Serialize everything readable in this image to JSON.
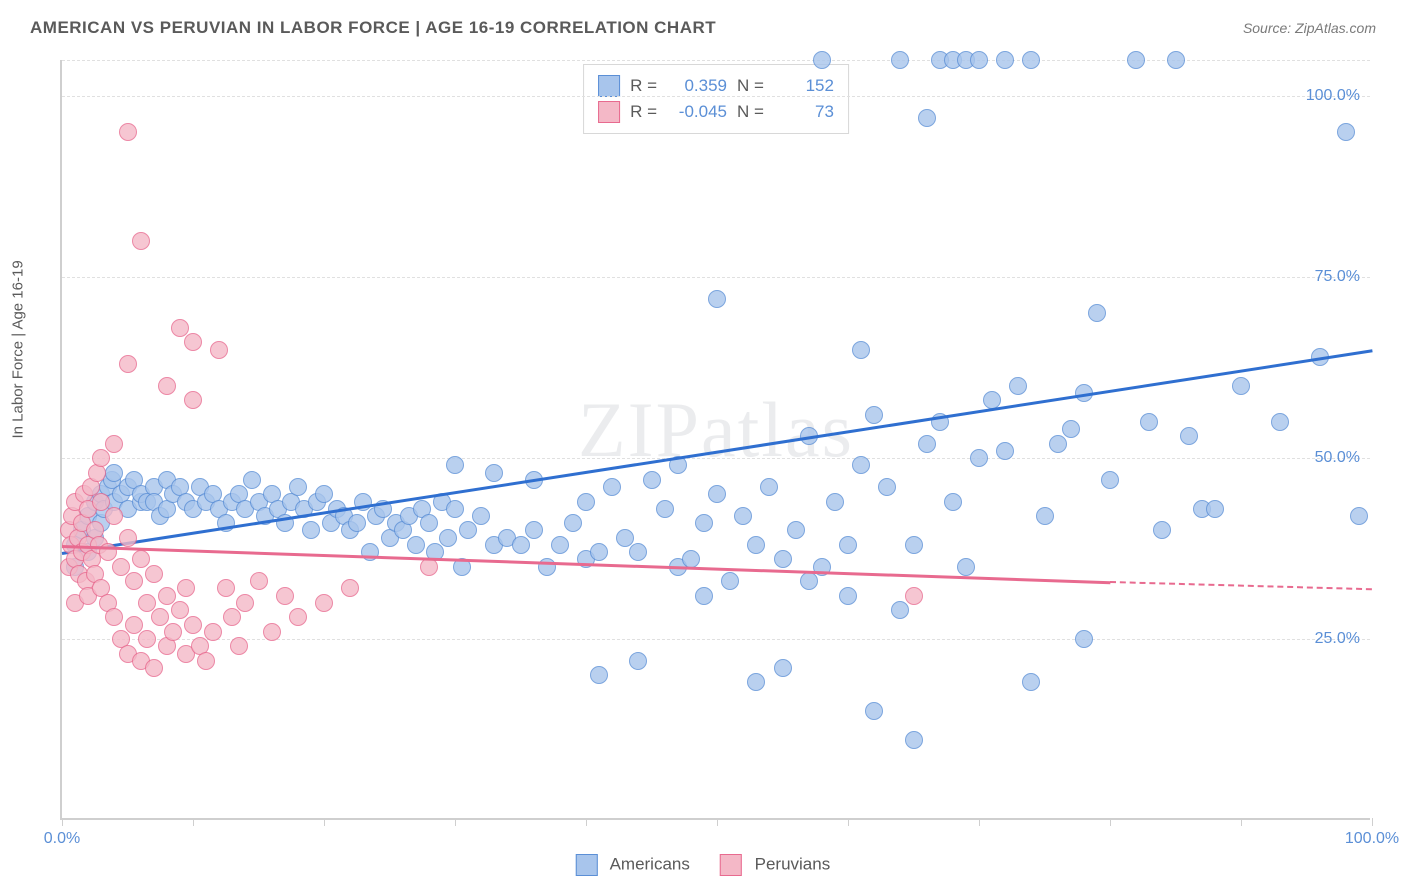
{
  "title": "AMERICAN VS PERUVIAN IN LABOR FORCE | AGE 16-19 CORRELATION CHART",
  "source": "Source: ZipAtlas.com",
  "watermark": "ZIPatlas",
  "y_axis_label": "In Labor Force | Age 16-19",
  "chart": {
    "type": "scatter",
    "xlim": [
      0,
      100
    ],
    "ylim": [
      0,
      105
    ],
    "x_ticks_minor": [
      0,
      10,
      20,
      30,
      40,
      50,
      60,
      70,
      80,
      90,
      100
    ],
    "x_tick_labels": [
      {
        "pos": 0,
        "label": "0.0%"
      },
      {
        "pos": 100,
        "label": "100.0%"
      }
    ],
    "y_grid": [
      25,
      50,
      75,
      100,
      105
    ],
    "y_tick_labels": [
      {
        "pos": 25,
        "label": "25.0%"
      },
      {
        "pos": 50,
        "label": "50.0%"
      },
      {
        "pos": 75,
        "label": "75.0%"
      },
      {
        "pos": 100,
        "label": "100.0%"
      }
    ],
    "background_color": "#ffffff",
    "grid_color": "#e0e0e0",
    "axis_color": "#cfcfcf",
    "tick_label_color": "#5b8fd6",
    "text_color": "#5a5a5a",
    "marker_radius": 9,
    "marker_stroke_width": 1.5,
    "marker_fill_opacity": 0.35,
    "series": [
      {
        "name": "Americans",
        "fill_color": "#a8c5ec",
        "stroke_color": "#5b8fd6",
        "line_color": "#2f6fd0",
        "trend": {
          "x1": 0,
          "y1": 37,
          "x2": 100,
          "y2": 65,
          "dash_from_x": 100
        },
        "R": "0.359",
        "N": "152",
        "points": [
          [
            1,
            35
          ],
          [
            1,
            38
          ],
          [
            1.5,
            40
          ],
          [
            2,
            37
          ],
          [
            2,
            42
          ],
          [
            2.5,
            39
          ],
          [
            2.5,
            44
          ],
          [
            3,
            41
          ],
          [
            3,
            45
          ],
          [
            3.2,
            43
          ],
          [
            3.5,
            46
          ],
          [
            3.8,
            47
          ],
          [
            4,
            44
          ],
          [
            4,
            48
          ],
          [
            4.5,
            45
          ],
          [
            5,
            43
          ],
          [
            5,
            46
          ],
          [
            5.5,
            47
          ],
          [
            6,
            44
          ],
          [
            6,
            45
          ],
          [
            6.5,
            44
          ],
          [
            7,
            46
          ],
          [
            7,
            44
          ],
          [
            7.5,
            42
          ],
          [
            8,
            47
          ],
          [
            8,
            43
          ],
          [
            8.5,
            45
          ],
          [
            9,
            46
          ],
          [
            9.5,
            44
          ],
          [
            10,
            43
          ],
          [
            10.5,
            46
          ],
          [
            11,
            44
          ],
          [
            11.5,
            45
          ],
          [
            12,
            43
          ],
          [
            12.5,
            41
          ],
          [
            13,
            44
          ],
          [
            13.5,
            45
          ],
          [
            14,
            43
          ],
          [
            14.5,
            47
          ],
          [
            15,
            44
          ],
          [
            15.5,
            42
          ],
          [
            16,
            45
          ],
          [
            16.5,
            43
          ],
          [
            17,
            41
          ],
          [
            17.5,
            44
          ],
          [
            18,
            46
          ],
          [
            18.5,
            43
          ],
          [
            19,
            40
          ],
          [
            19.5,
            44
          ],
          [
            20,
            45
          ],
          [
            20.5,
            41
          ],
          [
            21,
            43
          ],
          [
            21.5,
            42
          ],
          [
            22,
            40
          ],
          [
            22.5,
            41
          ],
          [
            23,
            44
          ],
          [
            23.5,
            37
          ],
          [
            24,
            42
          ],
          [
            24.5,
            43
          ],
          [
            25,
            39
          ],
          [
            25.5,
            41
          ],
          [
            26,
            40
          ],
          [
            26.5,
            42
          ],
          [
            27,
            38
          ],
          [
            27.5,
            43
          ],
          [
            28,
            41
          ],
          [
            28.5,
            37
          ],
          [
            29,
            44
          ],
          [
            29.5,
            39
          ],
          [
            30,
            43
          ],
          [
            30,
            49
          ],
          [
            30.5,
            35
          ],
          [
            31,
            40
          ],
          [
            32,
            42
          ],
          [
            33,
            38
          ],
          [
            33,
            48
          ],
          [
            34,
            39
          ],
          [
            35,
            38
          ],
          [
            36,
            40
          ],
          [
            36,
            47
          ],
          [
            37,
            35
          ],
          [
            38,
            38
          ],
          [
            39,
            41
          ],
          [
            40,
            36
          ],
          [
            40,
            44
          ],
          [
            41,
            20
          ],
          [
            41,
            37
          ],
          [
            42,
            46
          ],
          [
            43,
            39
          ],
          [
            44,
            37
          ],
          [
            44,
            22
          ],
          [
            45,
            47
          ],
          [
            46,
            43
          ],
          [
            47,
            49
          ],
          [
            47,
            35
          ],
          [
            48,
            36
          ],
          [
            49,
            31
          ],
          [
            49,
            41
          ],
          [
            50,
            45
          ],
          [
            50,
            72
          ],
          [
            51,
            33
          ],
          [
            52,
            42
          ],
          [
            53,
            19
          ],
          [
            53,
            38
          ],
          [
            54,
            46
          ],
          [
            55,
            36
          ],
          [
            55,
            21
          ],
          [
            56,
            40
          ],
          [
            57,
            33
          ],
          [
            57,
            53
          ],
          [
            58,
            35
          ],
          [
            58,
            105
          ],
          [
            59,
            44
          ],
          [
            60,
            38
          ],
          [
            60,
            31
          ],
          [
            61,
            49
          ],
          [
            61,
            65
          ],
          [
            62,
            15
          ],
          [
            62,
            56
          ],
          [
            63,
            46
          ],
          [
            64,
            29
          ],
          [
            64,
            105
          ],
          [
            65,
            38
          ],
          [
            65,
            11
          ],
          [
            66,
            52
          ],
          [
            66,
            97
          ],
          [
            67,
            55
          ],
          [
            67,
            105
          ],
          [
            68,
            44
          ],
          [
            68,
            105
          ],
          [
            69,
            35
          ],
          [
            69,
            105
          ],
          [
            70,
            50
          ],
          [
            70,
            105
          ],
          [
            71,
            58
          ],
          [
            72,
            51
          ],
          [
            72,
            105
          ],
          [
            73,
            60
          ],
          [
            74,
            19
          ],
          [
            74,
            105
          ],
          [
            75,
            42
          ],
          [
            76,
            52
          ],
          [
            77,
            54
          ],
          [
            78,
            25
          ],
          [
            78,
            59
          ],
          [
            79,
            70
          ],
          [
            80,
            47
          ],
          [
            82,
            105
          ],
          [
            83,
            55
          ],
          [
            84,
            40
          ],
          [
            85,
            105
          ],
          [
            86,
            53
          ],
          [
            87,
            43
          ],
          [
            88,
            43
          ],
          [
            90,
            60
          ],
          [
            93,
            55
          ],
          [
            96,
            64
          ],
          [
            98,
            95
          ],
          [
            99,
            42
          ]
        ]
      },
      {
        "name": "Peruvians",
        "fill_color": "#f4b8c7",
        "stroke_color": "#e86a8f",
        "line_color": "#e86a8f",
        "trend": {
          "x1": 0,
          "y1": 38,
          "x2": 80,
          "y2": 33,
          "dash_from_x": 80,
          "dash_x2": 100,
          "dash_y2": 32
        },
        "R": "-0.045",
        "N": "73",
        "points": [
          [
            0.5,
            40
          ],
          [
            0.5,
            35
          ],
          [
            0.7,
            38
          ],
          [
            0.8,
            42
          ],
          [
            1,
            36
          ],
          [
            1,
            44
          ],
          [
            1,
            30
          ],
          [
            1.2,
            39
          ],
          [
            1.3,
            34
          ],
          [
            1.5,
            41
          ],
          [
            1.5,
            37
          ],
          [
            1.7,
            45
          ],
          [
            1.8,
            33
          ],
          [
            2,
            38
          ],
          [
            2,
            43
          ],
          [
            2,
            31
          ],
          [
            2.2,
            46
          ],
          [
            2.3,
            36
          ],
          [
            2.5,
            40
          ],
          [
            2.5,
            34
          ],
          [
            2.7,
            48
          ],
          [
            2.8,
            38
          ],
          [
            3,
            44
          ],
          [
            3,
            32
          ],
          [
            3,
            50
          ],
          [
            3.5,
            37
          ],
          [
            3.5,
            30
          ],
          [
            4,
            42
          ],
          [
            4,
            28
          ],
          [
            4,
            52
          ],
          [
            4.5,
            35
          ],
          [
            4.5,
            25
          ],
          [
            5,
            39
          ],
          [
            5,
            23
          ],
          [
            5,
            95
          ],
          [
            5,
            63
          ],
          [
            5.5,
            33
          ],
          [
            5.5,
            27
          ],
          [
            6,
            36
          ],
          [
            6,
            22
          ],
          [
            6,
            80
          ],
          [
            6.5,
            30
          ],
          [
            6.5,
            25
          ],
          [
            7,
            34
          ],
          [
            7,
            21
          ],
          [
            7.5,
            28
          ],
          [
            8,
            31
          ],
          [
            8,
            24
          ],
          [
            8,
            60
          ],
          [
            8.5,
            26
          ],
          [
            9,
            29
          ],
          [
            9,
            68
          ],
          [
            9.5,
            23
          ],
          [
            9.5,
            32
          ],
          [
            10,
            27
          ],
          [
            10,
            66
          ],
          [
            10,
            58
          ],
          [
            10.5,
            24
          ],
          [
            11,
            22
          ],
          [
            11.5,
            26
          ],
          [
            12,
            65
          ],
          [
            12.5,
            32
          ],
          [
            13,
            28
          ],
          [
            13.5,
            24
          ],
          [
            14,
            30
          ],
          [
            15,
            33
          ],
          [
            16,
            26
          ],
          [
            17,
            31
          ],
          [
            18,
            28
          ],
          [
            20,
            30
          ],
          [
            22,
            32
          ],
          [
            28,
            35
          ],
          [
            65,
            31
          ]
        ]
      }
    ]
  },
  "legend_bottom": [
    {
      "label": "Americans",
      "fill": "#a8c5ec",
      "stroke": "#5b8fd6"
    },
    {
      "label": "Peruvians",
      "fill": "#f4b8c7",
      "stroke": "#e86a8f"
    }
  ]
}
